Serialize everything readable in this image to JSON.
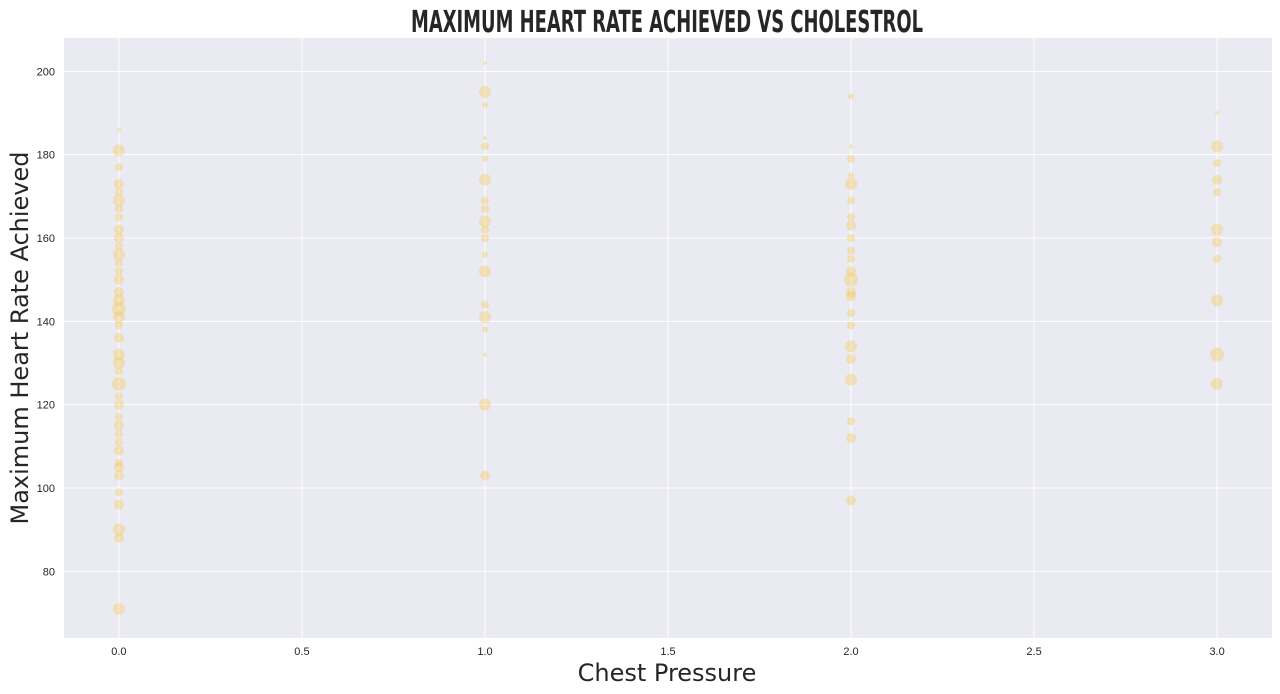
{
  "chart_data": {
    "type": "scatter",
    "title": "MAXIMUM HEART RATE ACHIEVED VS CHOLESTROL",
    "xlabel": "Chest Pressure",
    "ylabel": "Maximum Heart Rate Achieved",
    "xlim": [
      -0.15,
      3.15
    ],
    "ylim": [
      64,
      208
    ],
    "xticks": [
      0.0,
      0.5,
      1.0,
      1.5,
      2.0,
      2.5,
      3.0
    ],
    "xtick_labels": [
      "0.0",
      "0.5",
      "1.0",
      "1.5",
      "2.0",
      "2.5",
      "3.0"
    ],
    "yticks": [
      80,
      100,
      120,
      140,
      160,
      180,
      200
    ],
    "ytick_labels": [
      "80",
      "100",
      "120",
      "140",
      "160",
      "180",
      "200"
    ],
    "grid": true,
    "background": "#eaeaf2",
    "grid_color": "#ffffff",
    "marker_color": "#f7c02b",
    "marker_alpha": 0.3,
    "points": [
      [
        0,
        186,
        2
      ],
      [
        0,
        181,
        6
      ],
      [
        0,
        177,
        4
      ],
      [
        0,
        173,
        5
      ],
      [
        0,
        171,
        4
      ],
      [
        0,
        169,
        6
      ],
      [
        0,
        167,
        4
      ],
      [
        0,
        165,
        4
      ],
      [
        0,
        162,
        5
      ],
      [
        0,
        160,
        5
      ],
      [
        0,
        158,
        4
      ],
      [
        0,
        156,
        6
      ],
      [
        0,
        154,
        4
      ],
      [
        0,
        152,
        4
      ],
      [
        0,
        150,
        5
      ],
      [
        0,
        147,
        5
      ],
      [
        0,
        145,
        6
      ],
      [
        0,
        143,
        7
      ],
      [
        0,
        141,
        6
      ],
      [
        0,
        139,
        4
      ],
      [
        0,
        136,
        5
      ],
      [
        0,
        132,
        6
      ],
      [
        0,
        130,
        6
      ],
      [
        0,
        128,
        4
      ],
      [
        0,
        125,
        7
      ],
      [
        0,
        122,
        4
      ],
      [
        0,
        120,
        5
      ],
      [
        0,
        117,
        4
      ],
      [
        0,
        115,
        5
      ],
      [
        0,
        113,
        4
      ],
      [
        0,
        111,
        4
      ],
      [
        0,
        109,
        5
      ],
      [
        0,
        106,
        4
      ],
      [
        0,
        105,
        5
      ],
      [
        0,
        103,
        5
      ],
      [
        0,
        99,
        4
      ],
      [
        0,
        96,
        5
      ],
      [
        0,
        90,
        6
      ],
      [
        0,
        88,
        5
      ],
      [
        0,
        71,
        6
      ],
      [
        1,
        202,
        2
      ],
      [
        1,
        195,
        6
      ],
      [
        1,
        192,
        3
      ],
      [
        1,
        184,
        2
      ],
      [
        1,
        182,
        4
      ],
      [
        1,
        179,
        3
      ],
      [
        1,
        174,
        6
      ],
      [
        1,
        169,
        4
      ],
      [
        1,
        167,
        4
      ],
      [
        1,
        164,
        6
      ],
      [
        1,
        162,
        4
      ],
      [
        1,
        160,
        4
      ],
      [
        1,
        156,
        3
      ],
      [
        1,
        152,
        6
      ],
      [
        1,
        144,
        4
      ],
      [
        1,
        141,
        6
      ],
      [
        1,
        138,
        3
      ],
      [
        1,
        132,
        2
      ],
      [
        1,
        120,
        6
      ],
      [
        1,
        103,
        5
      ],
      [
        2,
        194,
        3
      ],
      [
        2,
        182,
        2
      ],
      [
        2,
        179,
        4
      ],
      [
        2,
        175,
        3
      ],
      [
        2,
        173,
        6
      ],
      [
        2,
        169,
        4
      ],
      [
        2,
        165,
        4
      ],
      [
        2,
        163,
        5
      ],
      [
        2,
        160,
        4
      ],
      [
        2,
        157,
        4
      ],
      [
        2,
        155,
        4
      ],
      [
        2,
        152,
        5
      ],
      [
        2,
        150,
        7
      ],
      [
        2,
        147,
        5
      ],
      [
        2,
        146,
        5
      ],
      [
        2,
        142,
        4
      ],
      [
        2,
        139,
        4
      ],
      [
        2,
        134,
        6
      ],
      [
        2,
        131,
        5
      ],
      [
        2,
        126,
        6
      ],
      [
        2,
        116,
        4
      ],
      [
        2,
        112,
        5
      ],
      [
        2,
        97,
        5
      ],
      [
        3,
        190,
        2
      ],
      [
        3,
        182,
        6
      ],
      [
        3,
        178,
        4
      ],
      [
        3,
        174,
        5
      ],
      [
        3,
        171,
        4
      ],
      [
        3,
        162,
        6
      ],
      [
        3,
        159,
        5
      ],
      [
        3,
        155,
        4
      ],
      [
        3,
        145,
        6
      ],
      [
        3,
        132,
        7
      ],
      [
        3,
        125,
        6
      ]
    ]
  }
}
